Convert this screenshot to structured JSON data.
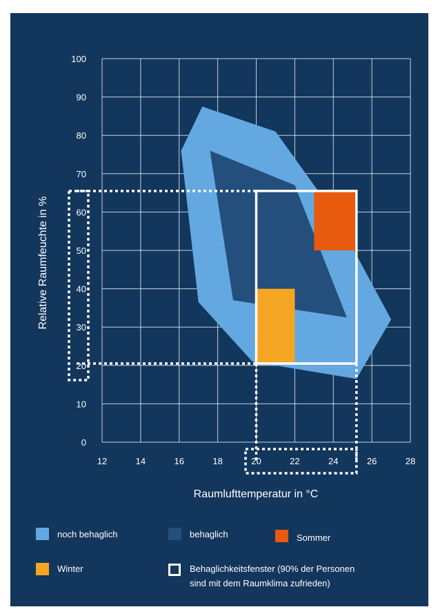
{
  "chart_data": {
    "type": "area",
    "xlabel": "Raumlufttemperatur in °C",
    "ylabel": "Relative Raumfeuchte in %",
    "xlim": [
      12,
      28
    ],
    "ylim": [
      0,
      100
    ],
    "x_ticks": [
      "12",
      "14",
      "16",
      "18",
      "20",
      "22",
      "24",
      "26",
      "28"
    ],
    "y_ticks": [
      "0",
      "10",
      "20",
      "30",
      "40",
      "50",
      "60",
      "70",
      "80",
      "90",
      "100"
    ],
    "grid": true,
    "series": [
      {
        "name": "noch behaglich",
        "color": "#63a8e0",
        "points": [
          [
            17.2,
            87.5
          ],
          [
            21,
            81
          ],
          [
            24,
            60
          ],
          [
            27.0,
            32
          ],
          [
            25.2,
            16.5
          ],
          [
            19.8,
            21
          ],
          [
            17.0,
            36.5
          ],
          [
            16.1,
            76
          ]
        ]
      },
      {
        "name": "behaglich",
        "color": "#244f7c",
        "points": [
          [
            17.6,
            76
          ],
          [
            22.0,
            67
          ],
          [
            24.7,
            32.5
          ],
          [
            18.8,
            37
          ]
        ]
      },
      {
        "name": "Sommer",
        "color": "#e85a0e",
        "points": [
          [
            23.0,
            65.5
          ],
          [
            25.2,
            65.5
          ],
          [
            25.2,
            50
          ],
          [
            23.0,
            50
          ]
        ]
      },
      {
        "name": "Winter",
        "color": "#f4a623",
        "points": [
          [
            20.0,
            40
          ],
          [
            22.0,
            40
          ],
          [
            22.0,
            20.5
          ],
          [
            20.0,
            20.5
          ]
        ]
      }
    ],
    "comfort_window": {
      "label": "Behaglichkeitsfenster (90% der Personen sind mit dem Raumklima zufrieden)",
      "x": [
        20,
        25.2
      ],
      "y": [
        20.5,
        65.5
      ]
    },
    "legend": [
      "noch behaglich",
      "behaglich",
      "Sommer",
      "Winter",
      "Behaglichkeitsfenster (90% der Personen sind mit dem Raumklima zufrieden)"
    ],
    "legend_placement": "bottom"
  },
  "legend_labels": {
    "noch_behaglich": "noch behaglich",
    "behaglich": "behaglich",
    "sommer": "Sommer",
    "winter": "Winter",
    "fenster_line1": "Behaglichkeitsfenster (90% der Personen",
    "fenster_line2": "sind mit dem Raumklima zufrieden)"
  },
  "colors": {
    "background": "#13365c",
    "grid": "#e8eef5",
    "noch_behaglich": "#63a8e0",
    "behaglich": "#244f7c",
    "sommer": "#e85a0e",
    "winter": "#f4a623",
    "window": "#ffffff"
  }
}
